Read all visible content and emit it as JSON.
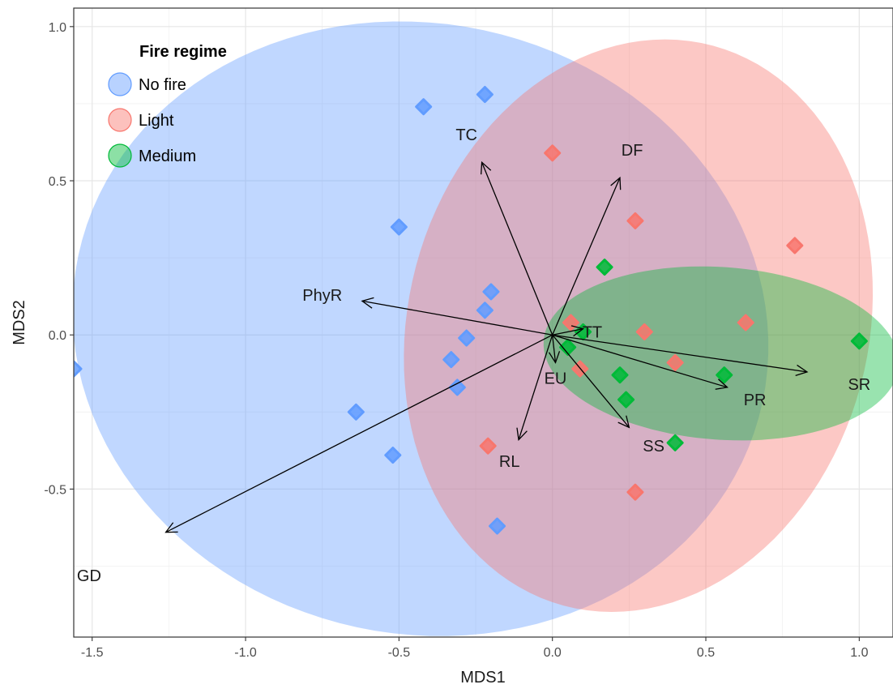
{
  "chart_data": {
    "type": "scatter",
    "xlabel": "MDS1",
    "ylabel": "MDS2",
    "xlim": [
      -1.56,
      1.11
    ],
    "ylim": [
      -0.98,
      1.06
    ],
    "x_ticks": [
      -1.5,
      -1.0,
      -0.5,
      0.0,
      0.5,
      1.0
    ],
    "x_tick_labels": [
      "-1.5",
      "-1.0",
      "-0.5",
      "0.0",
      "0.5",
      "1.0"
    ],
    "y_ticks": [
      -0.5,
      0.0,
      0.5,
      1.0
    ],
    "y_tick_labels": [
      "-0.5",
      "0.0",
      "0.5",
      "1.0"
    ],
    "grid": true,
    "legend": {
      "title": "Fire regime",
      "placement": "top-left",
      "entries": [
        {
          "label": "No fire",
          "color": "#619cff"
        },
        {
          "label": "Light",
          "color": "#f8766d"
        },
        {
          "label": "Medium",
          "color": "#00ba38"
        }
      ]
    },
    "ellipses": [
      {
        "group": "No fire",
        "color": "#619cff",
        "center": [
          -0.43,
          0.02
        ],
        "rx": 1.14,
        "ry": 0.99,
        "angle": -12
      },
      {
        "group": "Light",
        "color": "#f8766d",
        "center": [
          0.28,
          0.03
        ],
        "rx": 0.94,
        "ry": 0.75,
        "angle": 75
      },
      {
        "group": "Medium",
        "color": "#00ba38",
        "center": [
          0.55,
          -0.06
        ],
        "rx": 0.58,
        "ry": 0.28,
        "angle": -4
      }
    ],
    "series": [
      {
        "name": "No fire",
        "color": "#619cff",
        "points": [
          [
            -1.56,
            -0.11
          ],
          [
            -0.42,
            0.74
          ],
          [
            -0.22,
            0.78
          ],
          [
            -0.5,
            0.35
          ],
          [
            -0.2,
            0.14
          ],
          [
            -0.22,
            0.08
          ],
          [
            -0.28,
            -0.01
          ],
          [
            -0.33,
            -0.08
          ],
          [
            -0.31,
            -0.17
          ],
          [
            -0.64,
            -0.25
          ],
          [
            -0.52,
            -0.39
          ],
          [
            -0.18,
            -0.62
          ]
        ]
      },
      {
        "name": "Light",
        "color": "#f8766d",
        "points": [
          [
            0.0,
            0.59
          ],
          [
            0.27,
            0.37
          ],
          [
            0.79,
            0.29
          ],
          [
            0.63,
            0.04
          ],
          [
            0.3,
            0.01
          ],
          [
            0.4,
            -0.09
          ],
          [
            0.09,
            -0.11
          ],
          [
            0.06,
            0.04
          ],
          [
            -0.21,
            -0.36
          ],
          [
            0.27,
            -0.51
          ]
        ]
      },
      {
        "name": "Medium",
        "color": "#00ba38",
        "points": [
          [
            0.17,
            0.22
          ],
          [
            1.0,
            -0.02
          ],
          [
            0.56,
            -0.13
          ],
          [
            0.22,
            -0.13
          ],
          [
            0.24,
            -0.21
          ],
          [
            0.4,
            -0.35
          ],
          [
            0.05,
            -0.04
          ],
          [
            0.1,
            0.01
          ]
        ]
      }
    ],
    "vectors": [
      {
        "label": "TC",
        "x": -0.23,
        "y": 0.56,
        "label_x": -0.28,
        "label_y": 0.65
      },
      {
        "label": "DF",
        "x": 0.22,
        "y": 0.51,
        "label_x": 0.26,
        "label_y": 0.6
      },
      {
        "label": "PhyR",
        "x": -0.62,
        "y": 0.11,
        "label_x": -0.75,
        "label_y": 0.13
      },
      {
        "label": "TT",
        "x": 0.1,
        "y": 0.02,
        "label_x": 0.13,
        "label_y": 0.01
      },
      {
        "label": "EU",
        "x": 0.01,
        "y": -0.09,
        "label_x": 0.01,
        "label_y": -0.14
      },
      {
        "label": "RL",
        "x": -0.11,
        "y": -0.34,
        "label_x": -0.14,
        "label_y": -0.41
      },
      {
        "label": "SS",
        "x": 0.25,
        "y": -0.3,
        "label_x": 0.33,
        "label_y": -0.36
      },
      {
        "label": "PR",
        "x": 0.57,
        "y": -0.17,
        "label_x": 0.66,
        "label_y": -0.21
      },
      {
        "label": "SR",
        "x": 0.83,
        "y": -0.12,
        "label_x": 1.0,
        "label_y": -0.16
      },
      {
        "label": "GD",
        "x": -1.26,
        "y": -0.64,
        "label_x": -1.51,
        "label_y": -0.78
      }
    ]
  }
}
